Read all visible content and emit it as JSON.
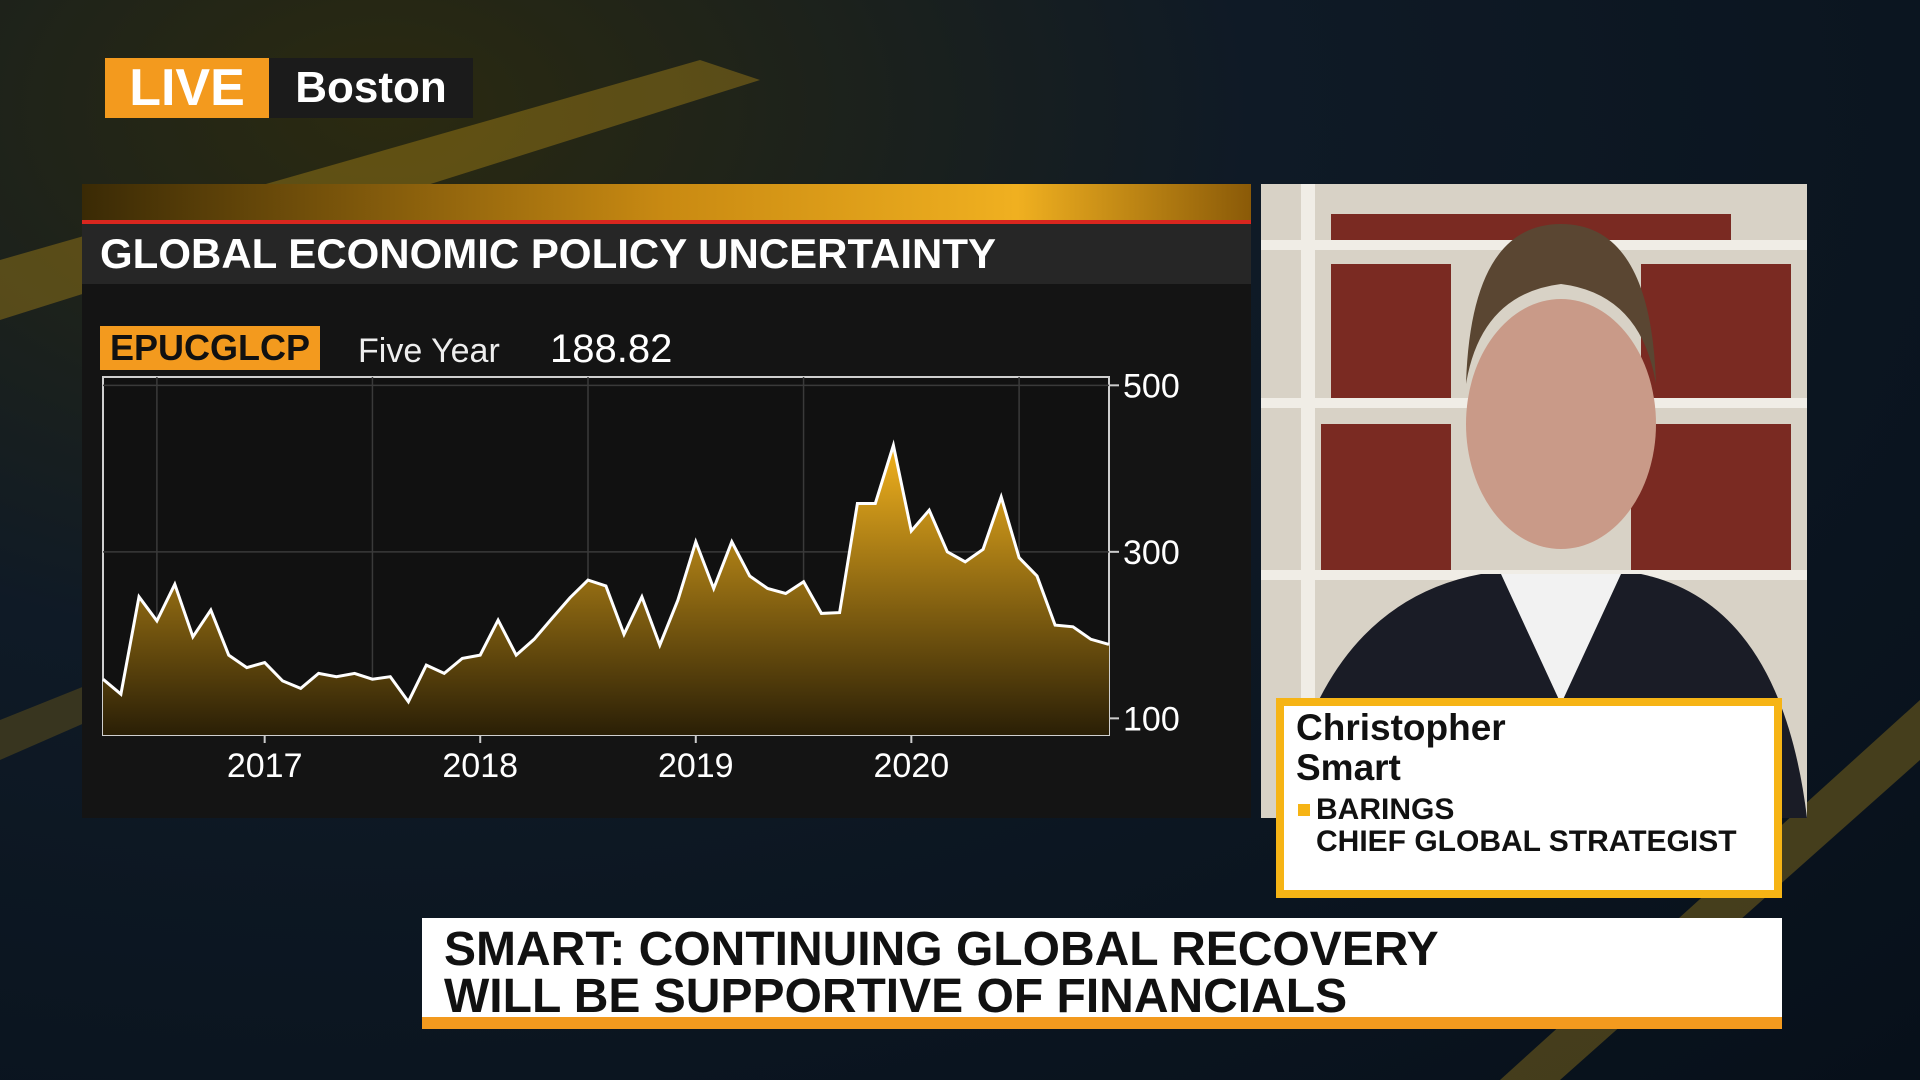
{
  "live_badge": "LIVE",
  "location": "Boston",
  "chart_data": {
    "type": "area",
    "title": "GLOBAL ECONOMIC POLICY UNCERTAINTY",
    "ticker": "EPUCGLCP",
    "period": "Five Year",
    "last_value": 188.82,
    "x": [
      2016.75,
      2016.833,
      2016.917,
      2017,
      2017.083,
      2017.167,
      2017.25,
      2017.333,
      2017.417,
      2017.5,
      2017.583,
      2017.667,
      2017.75,
      2017.833,
      2017.917,
      2018,
      2018.083,
      2018.167,
      2018.25,
      2018.333,
      2018.417,
      2018.5,
      2018.583,
      2018.667,
      2018.75,
      2018.833,
      2018.917,
      2019,
      2019.083,
      2019.167,
      2019.25,
      2019.333,
      2019.417,
      2019.5,
      2019.583,
      2019.667,
      2019.75,
      2019.833,
      2019.917,
      2020,
      2020.083,
      2020.167,
      2020.25,
      2020.333,
      2020.417,
      2020.5,
      2020.583,
      2020.667,
      2020.75,
      2020.833,
      2020.917,
      2021,
      2021.083,
      2021.167,
      2021.25,
      2021.333,
      2021.417
    ],
    "values": [
      147,
      129,
      246,
      217,
      261,
      198,
      230,
      176,
      161,
      167,
      145,
      136,
      154,
      150,
      154,
      147,
      150,
      120,
      164,
      154,
      172,
      176,
      218,
      176,
      195,
      220,
      245,
      266,
      259,
      201,
      246,
      188,
      242,
      312,
      256,
      312,
      271,
      256,
      250,
      264,
      226,
      227,
      358,
      358,
      428,
      325,
      350,
      300,
      288,
      303,
      366,
      293,
      271,
      212,
      210,
      195,
      188.82
    ],
    "color": "#f2b21e",
    "xlim": [
      2016.75,
      2021.417
    ],
    "ylim": [
      80,
      510
    ],
    "yticks": [
      100,
      300,
      500
    ],
    "xticks": [
      {
        "value": 2017.5,
        "label": "2017"
      },
      {
        "value": 2018.5,
        "label": "2018"
      },
      {
        "value": 2019.5,
        "label": "2019"
      },
      {
        "value": 2020.5,
        "label": "2020"
      }
    ],
    "xgrid": [
      2017,
      2018,
      2019,
      2020,
      2021
    ],
    "grid": true
  },
  "guest": {
    "name_lines": [
      "Christopher",
      "Smart"
    ],
    "organization": "BARINGS",
    "role": "CHIEF GLOBAL STRATEGIST"
  },
  "headline": [
    "SMART: CONTINUING GLOBAL RECOVERY",
    "WILL BE SUPPORTIVE OF FINANCIALS"
  ]
}
